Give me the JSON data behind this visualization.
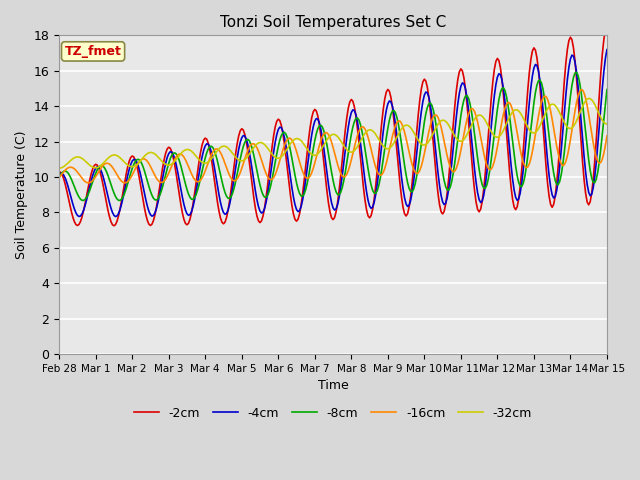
{
  "title": "Tonzi Soil Temperatures Set C",
  "xlabel": "Time",
  "ylabel": "Soil Temperature (C)",
  "ylim": [
    0,
    18
  ],
  "yticks": [
    0,
    2,
    4,
    6,
    8,
    10,
    12,
    14,
    16,
    18
  ],
  "annotation_text": "TZ_fmet",
  "annotation_color": "#cc0000",
  "annotation_bg": "#ffffcc",
  "annotation_border": "#888844",
  "series": [
    {
      "label": "-2cm",
      "color": "#dd0000",
      "linewidth": 1.2
    },
    {
      "label": "-4cm",
      "color": "#0000cc",
      "linewidth": 1.2
    },
    {
      "label": "-8cm",
      "color": "#00aa00",
      "linewidth": 1.2
    },
    {
      "label": "-16cm",
      "color": "#ff8800",
      "linewidth": 1.2
    },
    {
      "label": "-32cm",
      "color": "#cccc00",
      "linewidth": 1.2
    }
  ],
  "xtick_labels": [
    "Feb 28",
    "Mar 1",
    "Mar 2",
    "Mar 3",
    "Mar 4",
    "Mar 5",
    "Mar 6",
    "Mar 7",
    "Mar 8",
    "Mar 9",
    "Mar 10",
    "Mar 11",
    "Mar 12",
    "Mar 13",
    "Mar 14",
    "Mar 15"
  ],
  "legend_ncol": 5,
  "fig_bg": "#d8d8d8",
  "plot_bg": "#e8e8e8",
  "grid_color": "#ffffff"
}
